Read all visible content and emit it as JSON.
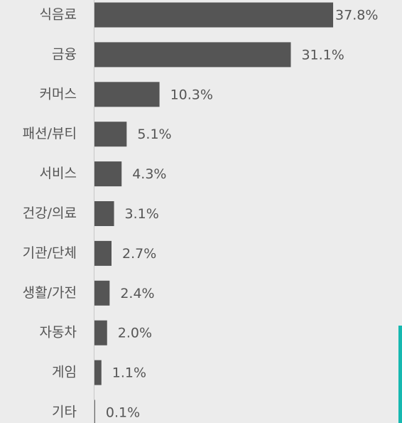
{
  "chart_data": {
    "type": "bar",
    "orientation": "horizontal",
    "categories": [
      "식음료",
      "금융",
      "커머스",
      "패션/뷰티",
      "서비스",
      "건강/의료",
      "기관/단체",
      "생활/가전",
      "자동차",
      "게임",
      "기타"
    ],
    "values": [
      37.8,
      31.1,
      10.3,
      5.1,
      4.3,
      3.1,
      2.7,
      2.4,
      2.0,
      1.1,
      0.1
    ],
    "value_labels": [
      "37.8%",
      "31.1%",
      "10.3%",
      "5.1%",
      "4.3%",
      "3.1%",
      "2.7%",
      "2.4%",
      "2.0%",
      "1.1%",
      "0.1%"
    ],
    "color": "#555555"
  }
}
